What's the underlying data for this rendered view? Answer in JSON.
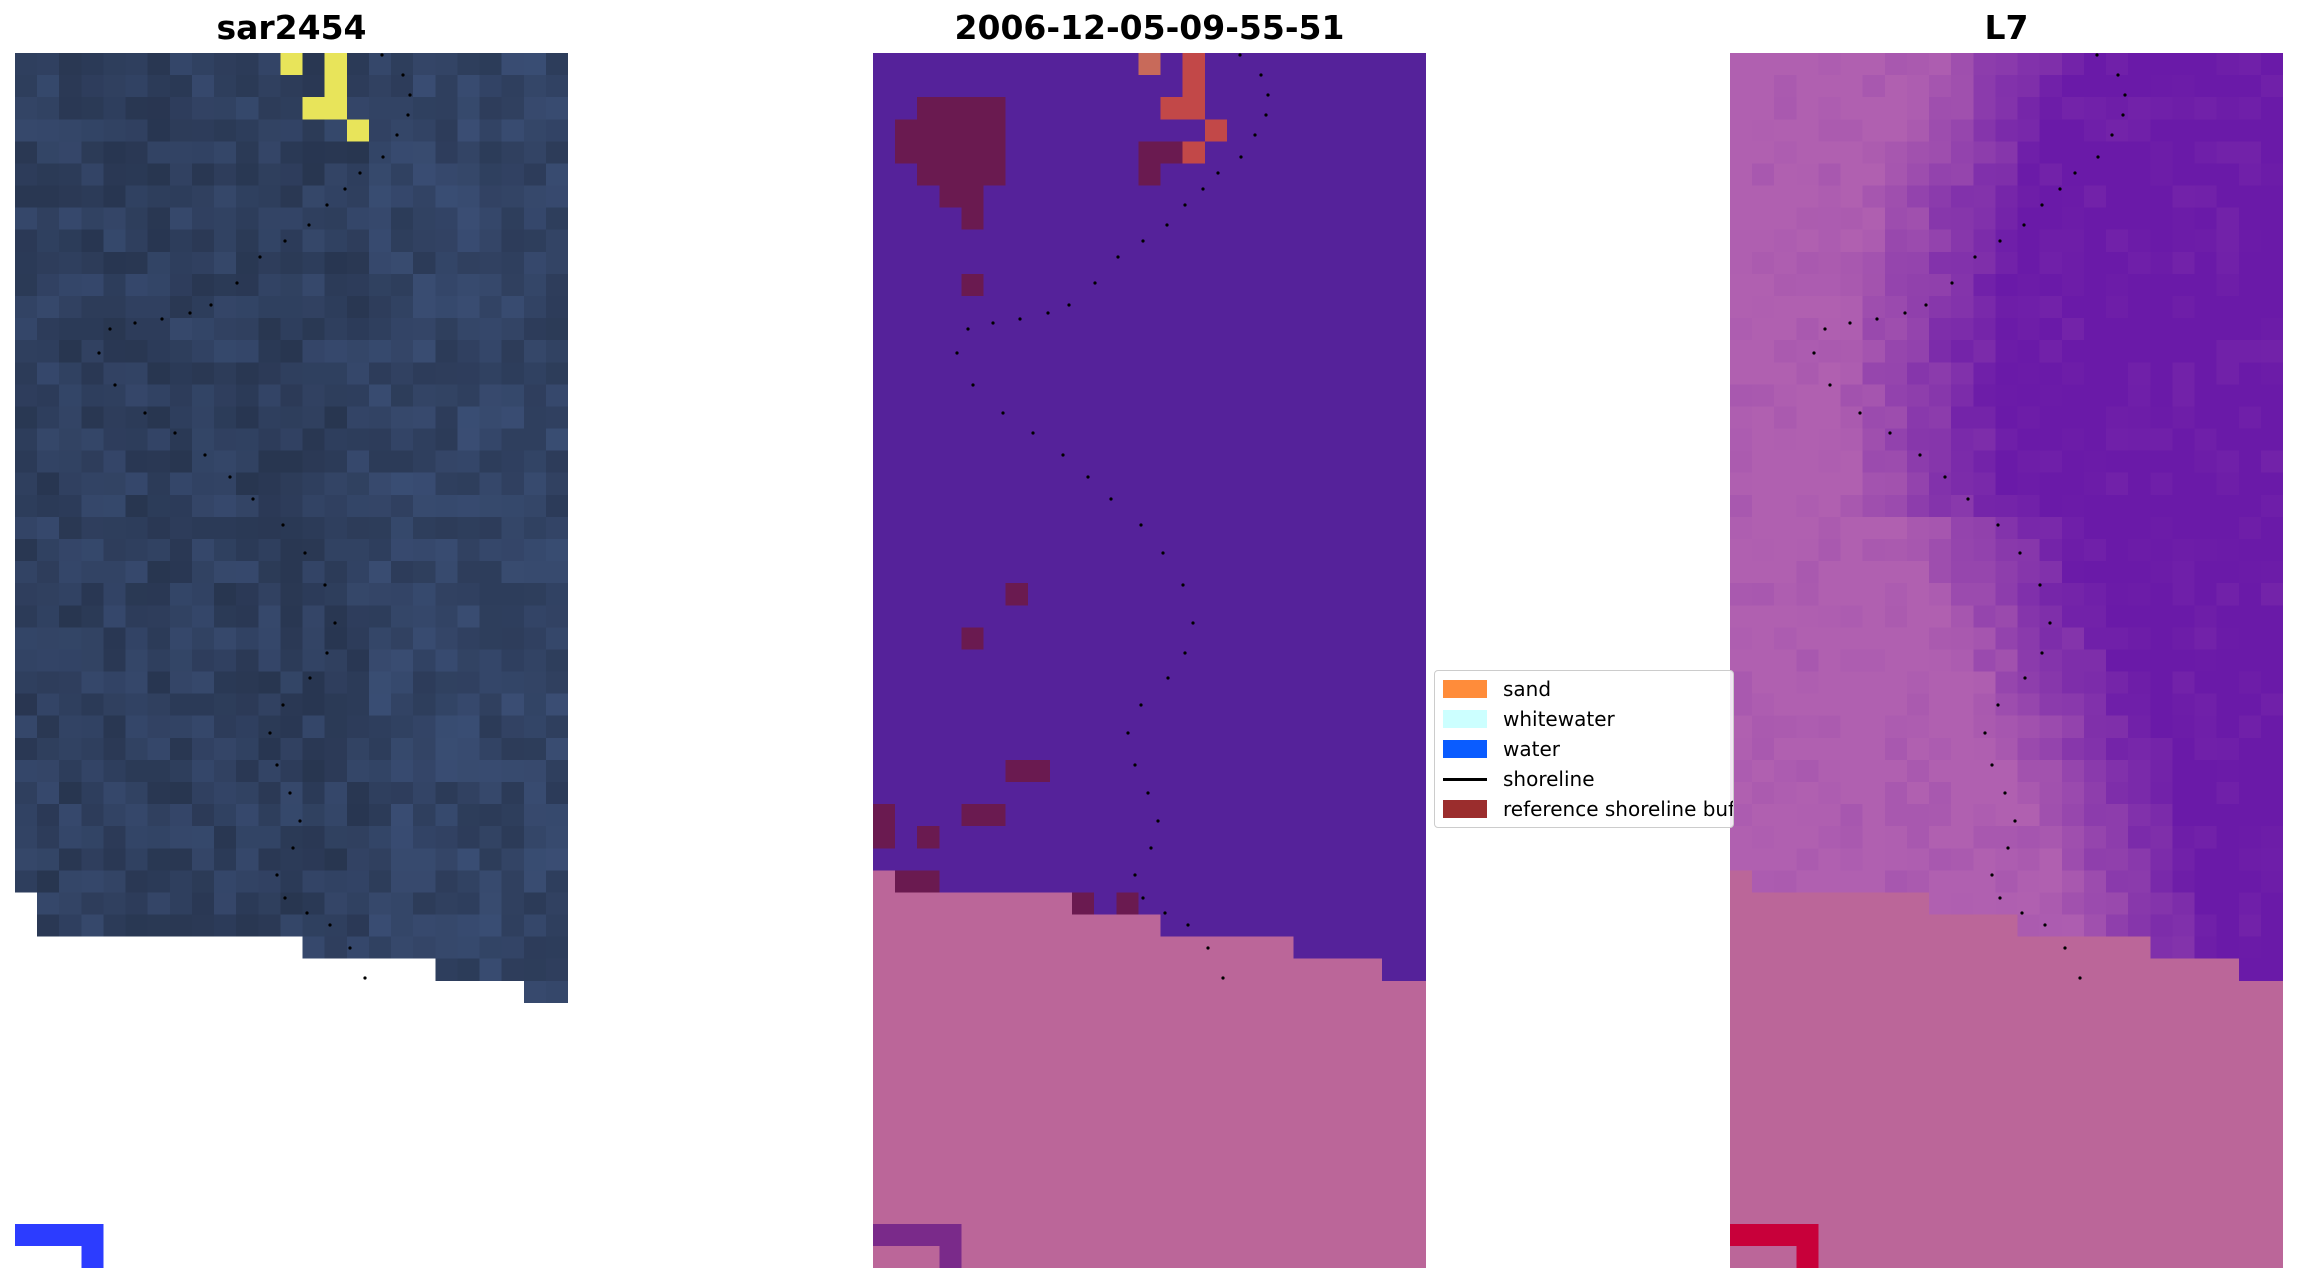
{
  "panels": [
    {
      "id": "left",
      "title": "sar2454"
    },
    {
      "id": "middle",
      "title": "2006-12-05-09-55-51"
    },
    {
      "id": "right",
      "title": "L7"
    }
  ],
  "legend": {
    "items": [
      {
        "label": "sand",
        "color": "#ff8c3a",
        "kind": "patch"
      },
      {
        "label": "whitewater",
        "color": "#ccffff",
        "kind": "patch"
      },
      {
        "label": "water",
        "color": "#0a5cff",
        "kind": "patch"
      },
      {
        "label": "shoreline",
        "color": "#000000",
        "kind": "line"
      },
      {
        "label": "reference shoreline buffer",
        "color": "#9b2d2d",
        "kind": "patch"
      }
    ]
  },
  "colors": {
    "sar_base": "#2f3f5e",
    "sar_highlight": "#e8e45a",
    "class_water": "#55229a",
    "class_land": "#bb6699",
    "class_buffer": "#6a1a50",
    "class_sand_accent": "#c24848",
    "l7_violet": "#6a1aa8",
    "l7_magenta": "#b060b0",
    "corner_blue": "#2c3cff",
    "corner_red": "#c8003a",
    "shoreline_dots": "#000000"
  }
}
